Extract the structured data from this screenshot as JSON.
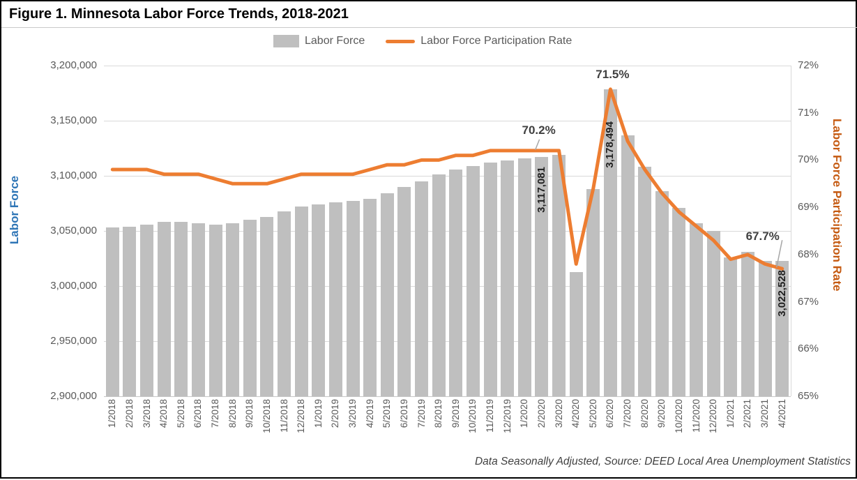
{
  "figure": {
    "title": "Figure 1. Minnesota Labor Force Trends, 2018-2021",
    "source_note": "Data Seasonally Adjusted, Source: DEED Local Area Unemployment Statistics"
  },
  "legend": [
    {
      "label": "Labor Force",
      "type": "bar",
      "color": "#BFBFBF"
    },
    {
      "label": "Labor Force Participation Rate",
      "type": "line",
      "color": "#ED7D31"
    }
  ],
  "chart_data": {
    "type": "bar",
    "subtype": "bar+line-combo",
    "grid": true,
    "legend_position": "top",
    "categories": [
      "1/2018",
      "2/2018",
      "3/2018",
      "4/2018",
      "5/2018",
      "6/2018",
      "7/2018",
      "8/2018",
      "9/2018",
      "10/2018",
      "11/2018",
      "12/2018",
      "1/2019",
      "2/2019",
      "3/2019",
      "4/2019",
      "5/2019",
      "6/2019",
      "7/2019",
      "8/2019",
      "9/2019",
      "10/2019",
      "11/2019",
      "12/2019",
      "1/2020",
      "2/2020",
      "3/2020",
      "4/2020",
      "5/2020",
      "6/2020",
      "7/2020",
      "8/2020",
      "9/2020",
      "10/2020",
      "11/2020",
      "12/2020",
      "1/2021",
      "2/2021",
      "3/2021",
      "4/2021"
    ],
    "series": [
      {
        "name": "Labor Force",
        "type": "bar",
        "axis": "left",
        "color": "#BFBFBF",
        "values": [
          3053000,
          3054000,
          3056000,
          3058000,
          3058000,
          3057000,
          3056000,
          3057000,
          3060000,
          3063000,
          3068000,
          3072000,
          3074000,
          3076000,
          3077000,
          3079000,
          3084000,
          3090000,
          3095000,
          3101000,
          3106000,
          3109000,
          3112000,
          3114000,
          3116000,
          3117081,
          3119000,
          3013000,
          3088000,
          3178494,
          3137000,
          3108000,
          3086000,
          3071000,
          3057000,
          3050000,
          3026000,
          3031000,
          3023000,
          3022528
        ]
      },
      {
        "name": "Labor Force Participation Rate",
        "type": "line",
        "axis": "right",
        "color": "#ED7D31",
        "values": [
          69.8,
          69.8,
          69.8,
          69.7,
          69.7,
          69.7,
          69.6,
          69.5,
          69.5,
          69.5,
          69.6,
          69.7,
          69.7,
          69.7,
          69.7,
          69.8,
          69.9,
          69.9,
          70.0,
          70.0,
          70.1,
          70.1,
          70.2,
          70.2,
          70.2,
          70.2,
          70.2,
          67.8,
          69.4,
          71.5,
          70.4,
          69.8,
          69.3,
          68.9,
          68.6,
          68.3,
          67.9,
          68.0,
          67.8,
          67.7
        ]
      }
    ],
    "left_axis": {
      "title": "Labor Force",
      "min": 2900000,
      "max": 3200000,
      "step": 50000,
      "tick_format": "thousands-comma",
      "title_color": "#2E75B6"
    },
    "right_axis": {
      "title": "Labor Force Participation Rate",
      "min": 65,
      "max": 72,
      "step": 1,
      "unit": "%",
      "title_color": "#C55A11"
    },
    "bar_labels": [
      {
        "index": 25,
        "category": "2/2020",
        "text": "3,117,081"
      },
      {
        "index": 29,
        "category": "6/2020",
        "text": "3,178,494"
      },
      {
        "index": 39,
        "category": "4/2021",
        "text": "3,022,528"
      }
    ],
    "line_callouts": [
      {
        "index": 26,
        "category": "3/2020",
        "text": "70.2%"
      },
      {
        "index": 29,
        "category": "6/2020",
        "text": "71.5%"
      },
      {
        "index": 39,
        "category": "4/2021",
        "text": "67.7%"
      }
    ]
  }
}
